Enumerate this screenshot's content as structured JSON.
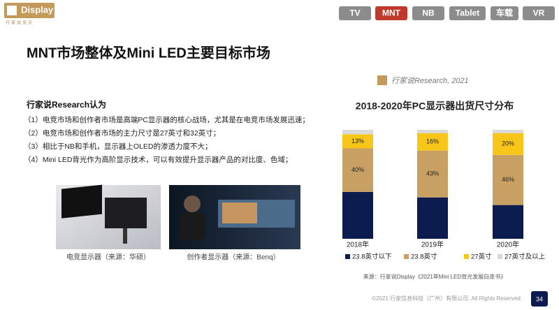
{
  "logo": {
    "text": "Display",
    "subtitle": "行家说显示"
  },
  "tabs": [
    "TV",
    "MNT",
    "NB",
    "Tablet",
    "车载",
    "VR"
  ],
  "active_tab": 1,
  "title": "MNT市场整体及Mini LED主要目标市场",
  "research": {
    "heading": "行家说Research认为",
    "points": [
      "（1）电竞市场和创作者市场是高端PC显示器的核心战场，尤其是在电竞市场发展迅速；",
      "（2）电竞市场和创作者市场的主力尺寸是27英寸和32英寸；",
      "（3）相比于NB和手机，显示器上OLED的渗透力度不大；",
      "（4）Mini LED背光作为高阶显示技术，可以有效提升显示器产品的对比度、色域；"
    ]
  },
  "images": [
    {
      "caption": "电竞显示器（来源：华硕）"
    },
    {
      "caption": "创作者显示器（来源：Benq）"
    }
  ],
  "watermark": "行家说Research, 2021",
  "chart_data": {
    "type": "stacked-bar",
    "title": "2018-2020年PC显示器出货尺寸分布",
    "categories": [
      "2018年",
      "2019年",
      "2020年"
    ],
    "ylim": [
      0,
      100
    ],
    "series": [
      {
        "name": "23.8英寸以下",
        "color": "#0d1c4f",
        "values": [
          43,
          38,
          31
        ],
        "value_labels": [
          null,
          null,
          null
        ]
      },
      {
        "name": "23.8英寸",
        "color": "#c9a063",
        "values": [
          40,
          43,
          46
        ],
        "value_labels": [
          "40%",
          "43%",
          "46%"
        ]
      },
      {
        "name": "27英寸",
        "color": "#f7c619",
        "values": [
          13,
          16,
          20
        ],
        "value_labels": [
          "13%",
          "16%",
          "20%"
        ]
      },
      {
        "name": "27英寸及以上",
        "color": "#d9d9d9",
        "values": [
          4,
          3,
          3
        ],
        "value_labels": [
          null,
          null,
          null
        ]
      }
    ]
  },
  "source": "来源：行家说Display《2021年Mini LED背光发展白皮书》",
  "footer": "©2021 行家信息科技（广州）有限公司. All Rights Reserved.",
  "page_number": "34"
}
